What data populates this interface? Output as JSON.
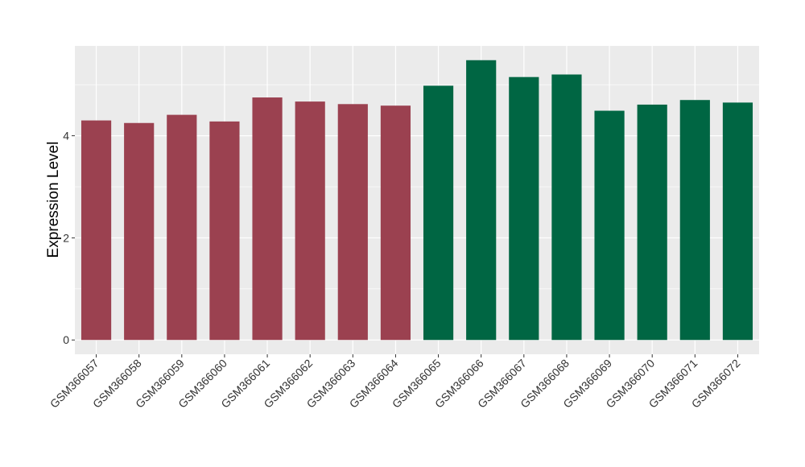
{
  "chart_data": {
    "type": "bar",
    "title": "",
    "xlabel": "",
    "ylabel": "Expression Level",
    "ylim": [
      -0.28,
      5.76
    ],
    "yticks": [
      0,
      2,
      4
    ],
    "grid": true,
    "legend": "none",
    "categories": [
      "GSM366057",
      "GSM366058",
      "GSM366059",
      "GSM366060",
      "GSM366061",
      "GSM366062",
      "GSM366063",
      "GSM366064",
      "GSM366065",
      "GSM366066",
      "GSM366067",
      "GSM366068",
      "GSM366069",
      "GSM366070",
      "GSM366071",
      "GSM366072"
    ],
    "values": [
      4.3,
      4.25,
      4.41,
      4.28,
      4.75,
      4.67,
      4.62,
      4.59,
      4.98,
      5.48,
      5.15,
      5.2,
      4.49,
      4.61,
      4.7,
      4.65
    ],
    "group_colors": [
      "#9b4150",
      "#9b4150",
      "#9b4150",
      "#9b4150",
      "#9b4150",
      "#9b4150",
      "#9b4150",
      "#9b4150",
      "#006643",
      "#006643",
      "#006643",
      "#006643",
      "#006643",
      "#006643",
      "#006643",
      "#006643"
    ],
    "panel_color": "#ebebeb",
    "grid_color": "#ffffff"
  }
}
